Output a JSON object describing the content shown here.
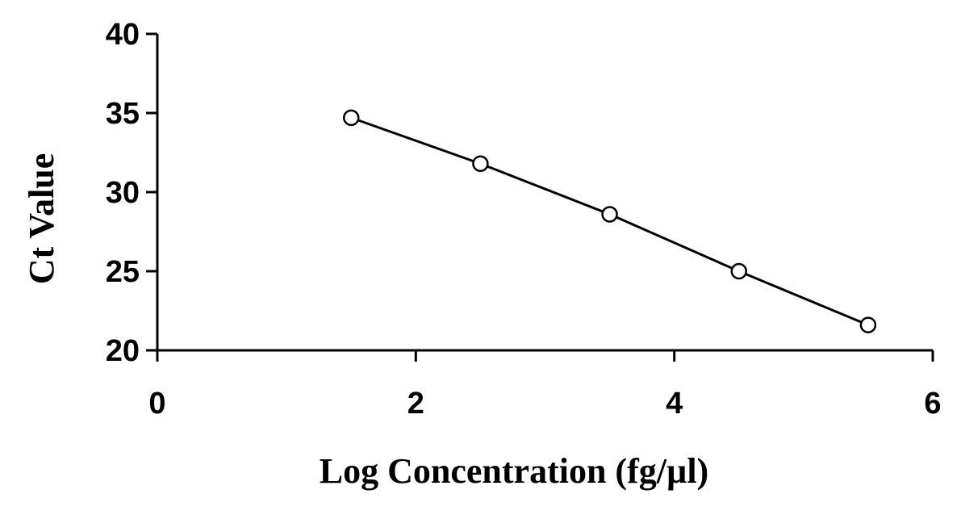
{
  "chart_data": {
    "type": "scatter",
    "title": "",
    "xlabel": "Log Concentration (fg/µl)",
    "ylabel": "Ct Value",
    "xlim": [
      0,
      6
    ],
    "ylim": [
      20,
      40
    ],
    "x_ticks": [
      0,
      2,
      4,
      6
    ],
    "y_ticks": [
      20,
      25,
      30,
      35,
      40
    ],
    "x_tick_labels": [
      "0",
      "2",
      "4",
      "6"
    ],
    "y_tick_labels": [
      "20",
      "25",
      "30",
      "35",
      "40"
    ],
    "grid": false,
    "legend": "none",
    "marker": "open-circle",
    "line": "connected",
    "color": "#000000",
    "series": [
      {
        "x": [
          1.5,
          2.5,
          3.5,
          4.5,
          5.5
        ],
        "y": [
          34.7,
          31.8,
          28.6,
          25.0,
          21.6
        ]
      }
    ]
  }
}
